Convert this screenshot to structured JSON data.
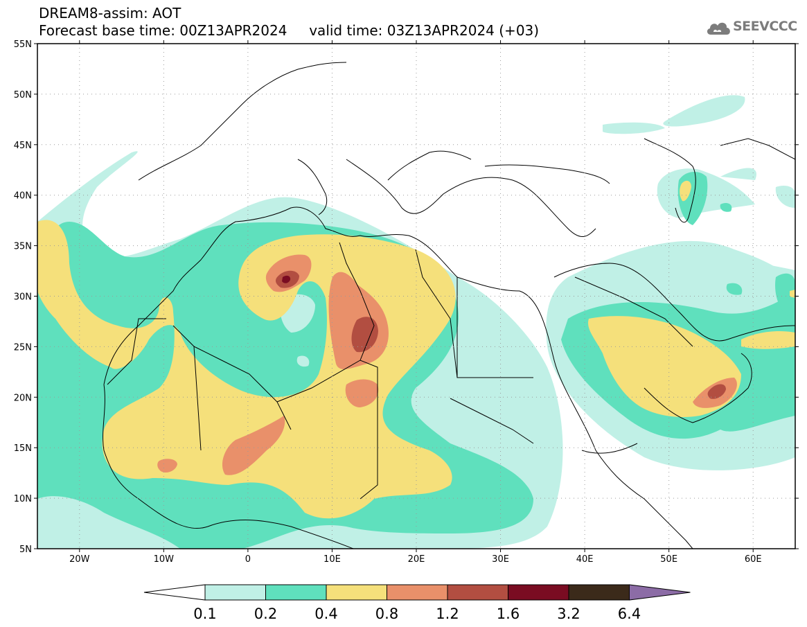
{
  "header": {
    "line1": "DREAM8-assim: AOT",
    "line2": "Forecast base time: 00Z13APR2024     valid time: 03Z13APR2024 (+03)"
  },
  "logo": {
    "text": "SEEVCCC",
    "icon": "cloud-icon",
    "color": "#7c7c7c"
  },
  "map": {
    "lon_range": [
      -25,
      65
    ],
    "lat_range": [
      5,
      55
    ],
    "lat_ticks": [
      {
        "value": 55,
        "label": "55N"
      },
      {
        "value": 50,
        "label": "50N"
      },
      {
        "value": 45,
        "label": "45N"
      },
      {
        "value": 40,
        "label": "40N"
      },
      {
        "value": 35,
        "label": "35N"
      },
      {
        "value": 30,
        "label": "30N"
      },
      {
        "value": 25,
        "label": "25N"
      },
      {
        "value": 20,
        "label": "20N"
      },
      {
        "value": 15,
        "label": "15N"
      },
      {
        "value": 10,
        "label": "10N"
      },
      {
        "value": 5,
        "label": "5N"
      }
    ],
    "lon_ticks": [
      {
        "value": -20,
        "label": "20W"
      },
      {
        "value": -10,
        "label": "10W"
      },
      {
        "value": 0,
        "label": "0"
      },
      {
        "value": 10,
        "label": "10E"
      },
      {
        "value": 20,
        "label": "20E"
      },
      {
        "value": 30,
        "label": "30E"
      },
      {
        "value": 40,
        "label": "40E"
      },
      {
        "value": 50,
        "label": "50E"
      },
      {
        "value": 60,
        "label": "60E"
      }
    ],
    "grid": true
  },
  "colorbar": {
    "labels": [
      "0.1",
      "0.2",
      "0.4",
      "0.8",
      "1.2",
      "1.6",
      "3.2",
      "6.4"
    ],
    "colors": [
      "#ffffff",
      "#c0f0e6",
      "#5fe0bd",
      "#f5e07b",
      "#e9906a",
      "#b24e41",
      "#7a0c22",
      "#3b2a1a",
      "#8c6ca6"
    ]
  }
}
